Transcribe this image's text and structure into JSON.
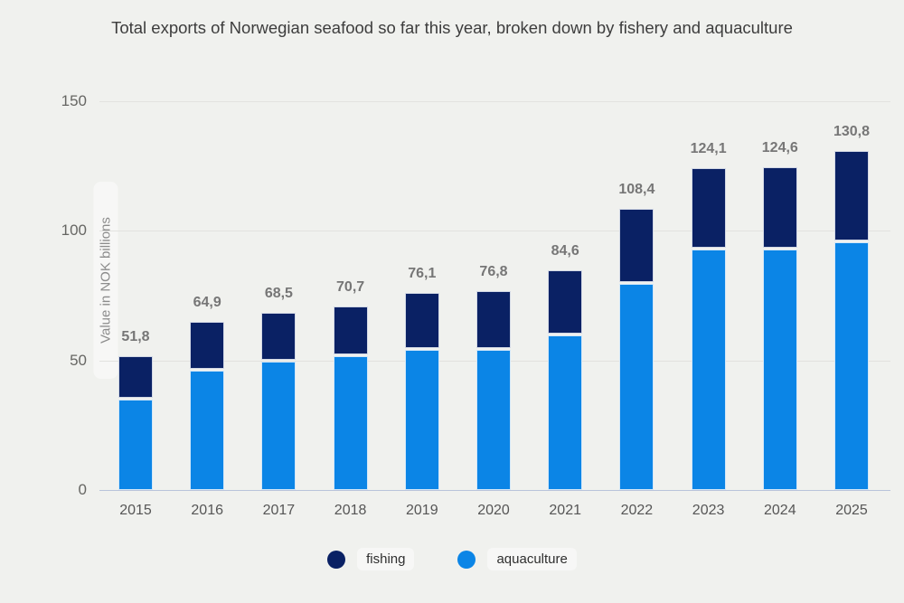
{
  "colors": {
    "fishing": "#0a2164",
    "aquaculture": "#0b85e6",
    "background": "#f0f1ee",
    "gridline": "#e2e2df",
    "baseline": "#b9c3da",
    "value_label": "#767676"
  },
  "chart_data": {
    "type": "bar",
    "stacked": true,
    "title": "Total exports of Norwegian seafood so far this year, broken down by fishery and aquaculture",
    "ylabel": "Value in NOK billions",
    "xlabel": "",
    "categories": [
      "2015",
      "2016",
      "2017",
      "2018",
      "2019",
      "2020",
      "2021",
      "2022",
      "2023",
      "2024",
      "2025"
    ],
    "series": [
      {
        "name": "fishing",
        "values": [
          17.0,
          18.9,
          19.1,
          19.2,
          21.9,
          22.7,
          24.9,
          28.9,
          31.2,
          31.7,
          35.1
        ]
      },
      {
        "name": "aquaculture",
        "values": [
          34.8,
          46.0,
          49.4,
          51.5,
          54.2,
          54.1,
          59.7,
          79.5,
          92.9,
          92.9,
          95.7
        ]
      }
    ],
    "totals": [
      51.8,
      64.9,
      68.5,
      70.7,
      76.1,
      76.8,
      84.6,
      108.4,
      124.1,
      124.6,
      130.8
    ],
    "total_labels": [
      "51,8",
      "64,9",
      "68,5",
      "70,7",
      "76,1",
      "76,8",
      "84,6",
      "108,4",
      "124,1",
      "124,6",
      "130,8"
    ],
    "yticks": [
      0,
      50,
      100,
      150
    ],
    "ylim": [
      0,
      150
    ],
    "grid": true,
    "legend_position": "bottom",
    "legend": [
      "fishing",
      "aquaculture"
    ]
  }
}
